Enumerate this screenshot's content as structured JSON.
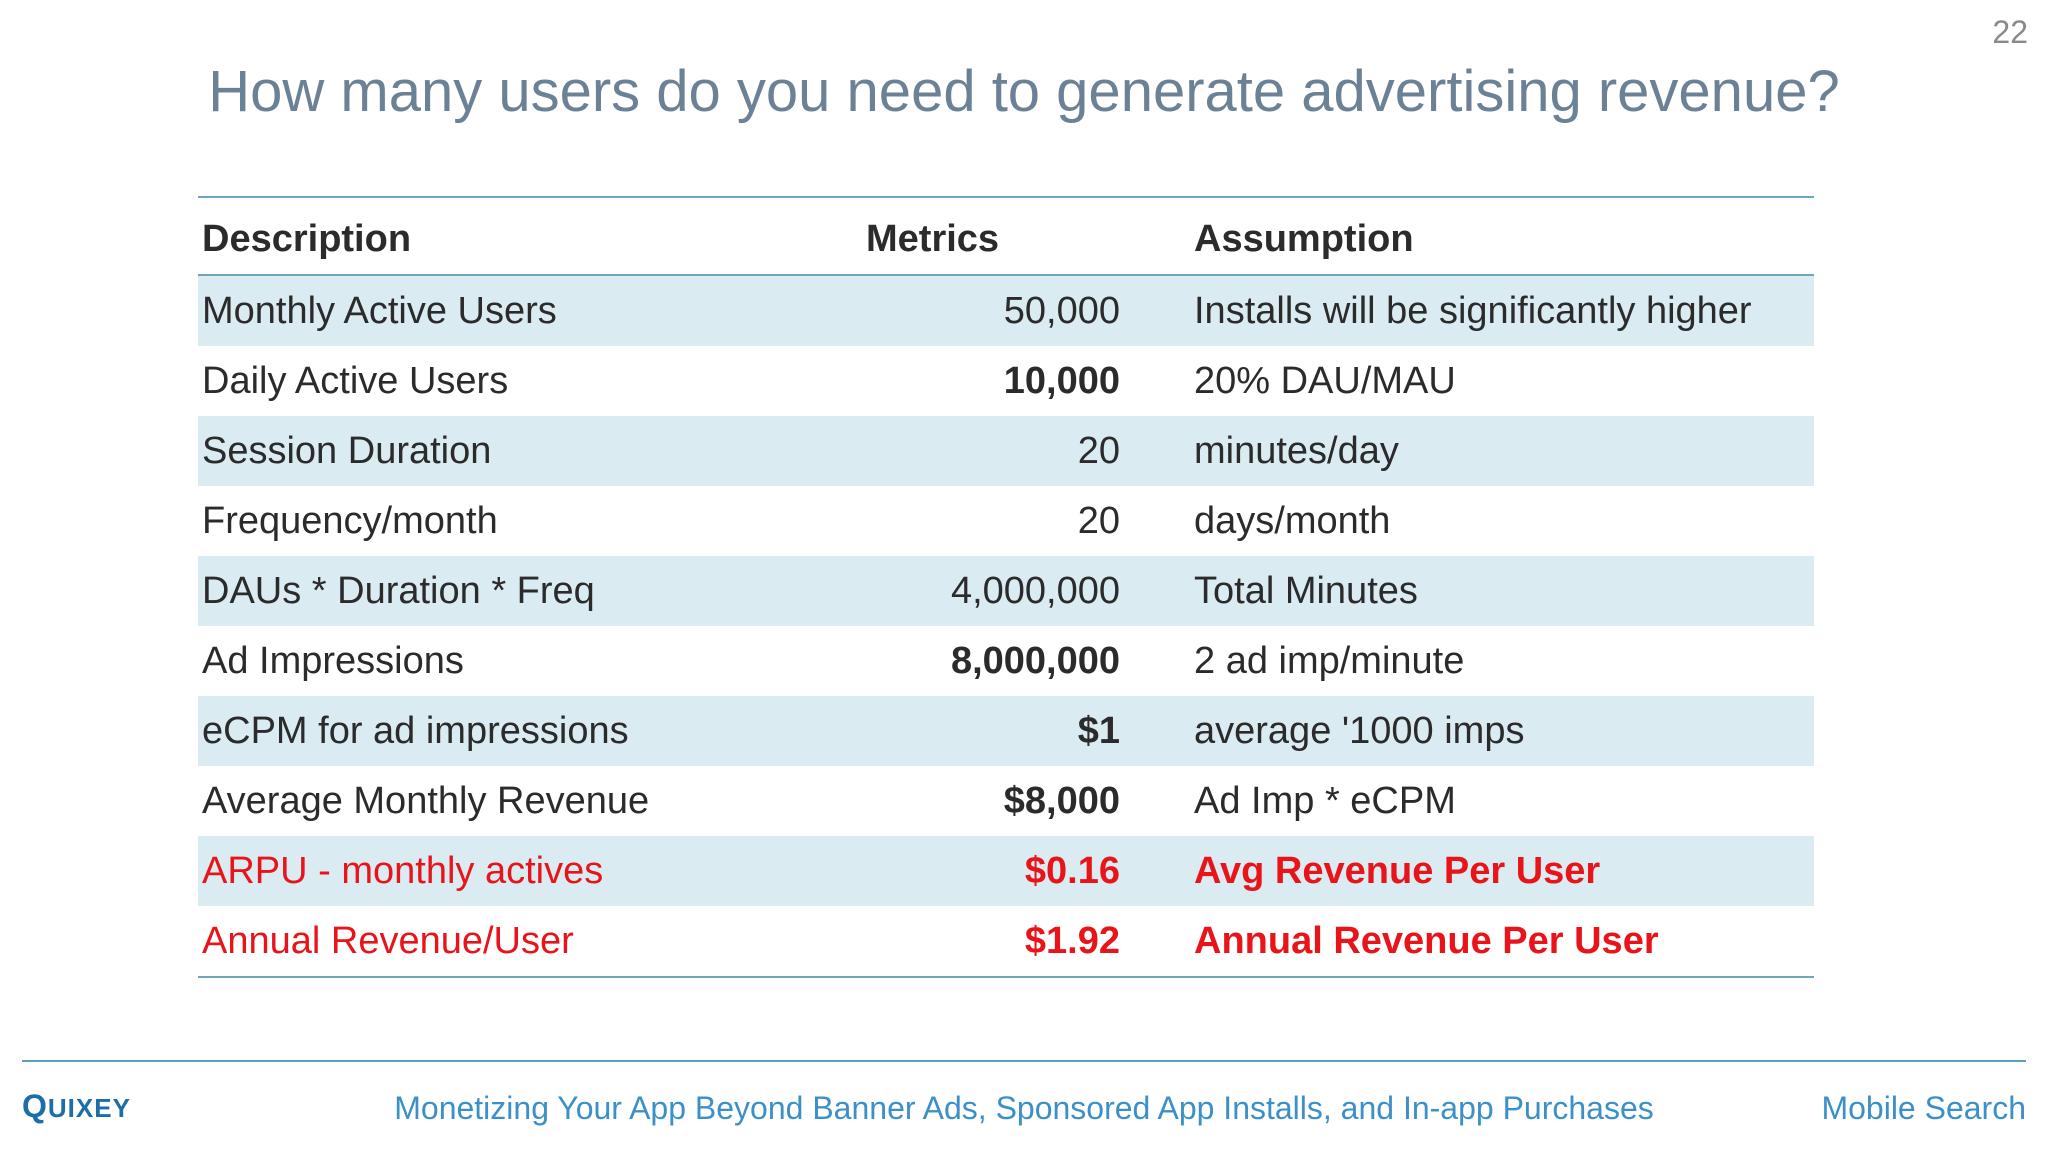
{
  "slide": {
    "page_number": "22",
    "title": "How many users do you need to generate advertising revenue?"
  },
  "table": {
    "headers": {
      "description": "Description",
      "metrics": "Metrics",
      "assumption": "Assumption"
    },
    "rows": [
      {
        "description": "Monthly Active Users",
        "metric": "50,000",
        "assumption": "Installs will be significantly higher"
      },
      {
        "description": "Daily Active Users",
        "metric": "10,000",
        "assumption": "20% DAU/MAU"
      },
      {
        "description": "Session Duration",
        "metric": "20",
        "assumption": "minutes/day"
      },
      {
        "description": "Frequency/month",
        "metric": "20",
        "assumption": "days/month"
      },
      {
        "description": "DAUs * Duration * Freq",
        "metric": "4,000,000",
        "assumption": "Total Minutes"
      },
      {
        "description": "Ad Impressions",
        "metric": "8,000,000",
        "assumption": "2 ad imp/minute"
      },
      {
        "description": "eCPM for ad impressions",
        "metric": "$1",
        "assumption": "average '1000 imps"
      },
      {
        "description": "Average Monthly Revenue",
        "metric": "$8,000",
        "assumption": "Ad Imp * eCPM"
      },
      {
        "description": "ARPU - monthly actives",
        "metric": "$0.16",
        "assumption": "Avg Revenue Per User"
      },
      {
        "description": "Annual Revenue/User",
        "metric": "$1.92",
        "assumption": "Annual Revenue Per User"
      }
    ]
  },
  "footer": {
    "logo_first": "Q",
    "logo_rest": "UIXEY",
    "center_text": "Monetizing Your App Beyond Banner Ads, Sponsored App Installs, and In-app Purchases",
    "right_text": "Mobile Search"
  },
  "colors": {
    "title": "#6b8196",
    "row_stripe": "#daebf1",
    "rule": "#6ea6bf",
    "highlight_red": "#e8141a",
    "footer_text": "#3c90c9",
    "logo": "#1b6ea8"
  }
}
